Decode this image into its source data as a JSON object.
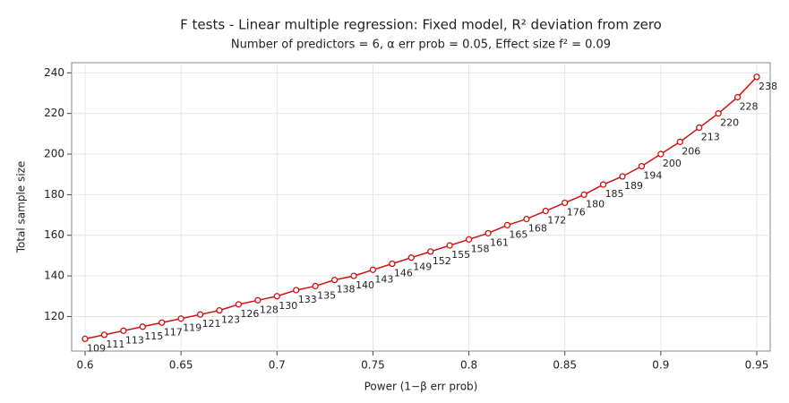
{
  "chart_data": {
    "type": "line",
    "title": "F tests - Linear multiple regression: Fixed model, R² deviation from zero",
    "subtitle": "Number of predictors = 6, α err prob = 0.05, Effect size f² = 0.09",
    "x_label": "Power (1−β err prob)",
    "y_label": "Total sample size",
    "x": [
      0.6,
      0.61,
      0.62,
      0.63,
      0.64,
      0.65,
      0.66,
      0.67,
      0.68,
      0.69,
      0.7,
      0.71,
      0.72,
      0.73,
      0.74,
      0.75,
      0.76,
      0.77,
      0.78,
      0.79,
      0.8,
      0.81,
      0.82,
      0.83,
      0.84,
      0.85,
      0.86,
      0.87,
      0.88,
      0.89,
      0.9,
      0.91,
      0.92,
      0.93,
      0.94,
      0.95
    ],
    "series": [
      {
        "name": "Total sample size",
        "color": "#d01010",
        "values": [
          109,
          111,
          113,
          115,
          117,
          119,
          121,
          123,
          126,
          128,
          130,
          133,
          135,
          138,
          140,
          143,
          146,
          149,
          152,
          155,
          158,
          161,
          165,
          168,
          172,
          176,
          180,
          185,
          189,
          194,
          200,
          206,
          213,
          220,
          228,
          238
        ]
      }
    ],
    "xlim": [
      0.593,
      0.957
    ],
    "ylim": [
      103,
      245
    ],
    "xticks": [
      0.6,
      0.65,
      0.7,
      0.75,
      0.8,
      0.85,
      0.9,
      0.95
    ],
    "yticks": [
      120,
      140,
      160,
      180,
      200,
      220,
      240
    ],
    "grid": true
  }
}
